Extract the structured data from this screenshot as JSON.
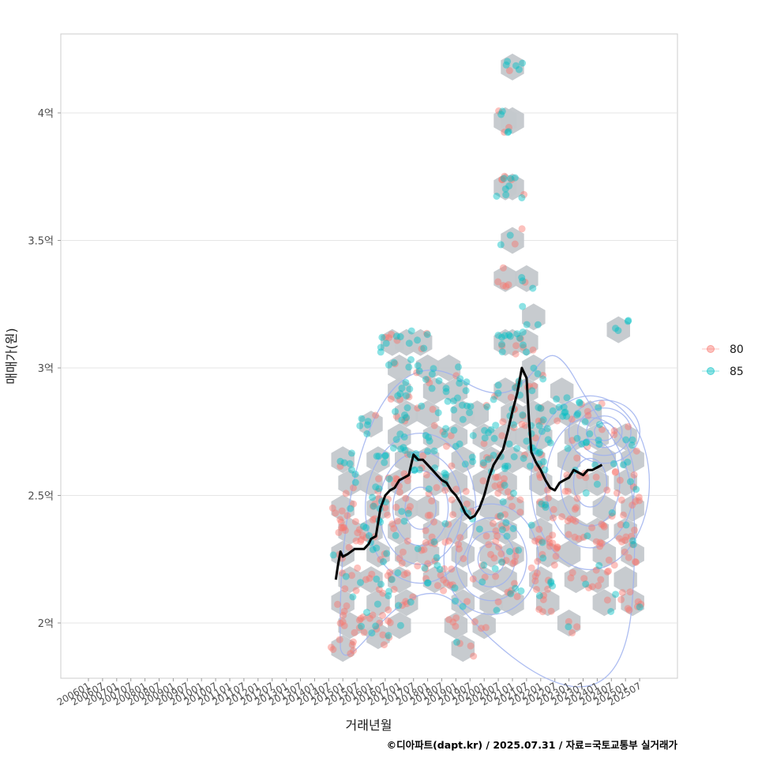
{
  "chart_data": {
    "type": "scatter",
    "xlabel": "거래년월",
    "ylabel": "매매가(원)",
    "caption": "©디아파트(dapt.kr) / 2025.07.31 / 자료=국토교통부 실거래가",
    "y_unit": "억원",
    "ylim": [
      1.8,
      4.31
    ],
    "y_ticks": [
      {
        "value": 2.0,
        "label": "2억"
      },
      {
        "value": 2.5,
        "label": "2.5억"
      },
      {
        "value": 3.0,
        "label": "3억"
      },
      {
        "value": 3.5,
        "label": "3.5억"
      },
      {
        "value": 4.0,
        "label": "4억"
      }
    ],
    "x_ticks": [
      "200601",
      "200607",
      "200701",
      "200707",
      "200801",
      "200807",
      "200901",
      "200907",
      "201001",
      "201007",
      "201101",
      "201107",
      "201201",
      "201207",
      "201301",
      "201307",
      "201401",
      "201407",
      "201501",
      "201507",
      "201601",
      "201607",
      "201701",
      "201707",
      "201801",
      "201807",
      "201901",
      "201907",
      "202001",
      "202007",
      "202101",
      "202107",
      "202201",
      "202207",
      "202301",
      "202307",
      "202401",
      "202407",
      "202501",
      "202507"
    ],
    "legend": {
      "title": "",
      "position": "right",
      "entries": [
        {
          "label": "80",
          "color": "#F8766D"
        },
        {
          "label": "85",
          "color": "#00BFC4"
        }
      ]
    },
    "moving_average": {
      "color": "#000000",
      "points": [
        [
          201410,
          2.17
        ],
        [
          201411,
          2.23
        ],
        [
          201412,
          2.28
        ],
        [
          201501,
          2.26
        ],
        [
          201503,
          2.27
        ],
        [
          201506,
          2.29
        ],
        [
          201508,
          2.29
        ],
        [
          201510,
          2.29
        ],
        [
          201512,
          2.31
        ],
        [
          201601,
          2.33
        ],
        [
          201603,
          2.34
        ],
        [
          201605,
          2.45
        ],
        [
          201607,
          2.5
        ],
        [
          201609,
          2.52
        ],
        [
          201611,
          2.53
        ],
        [
          201701,
          2.56
        ],
        [
          201703,
          2.57
        ],
        [
          201705,
          2.58
        ],
        [
          201707,
          2.66
        ],
        [
          201709,
          2.64
        ],
        [
          201711,
          2.64
        ],
        [
          201801,
          2.62
        ],
        [
          201803,
          2.6
        ],
        [
          201805,
          2.58
        ],
        [
          201807,
          2.56
        ],
        [
          201809,
          2.55
        ],
        [
          201811,
          2.52
        ],
        [
          201901,
          2.5
        ],
        [
          201903,
          2.47
        ],
        [
          201905,
          2.43
        ],
        [
          201907,
          2.41
        ],
        [
          201909,
          2.42
        ],
        [
          201911,
          2.45
        ],
        [
          202001,
          2.5
        ],
        [
          202003,
          2.57
        ],
        [
          202005,
          2.62
        ],
        [
          202007,
          2.65
        ],
        [
          202009,
          2.68
        ],
        [
          202011,
          2.75
        ],
        [
          202101,
          2.83
        ],
        [
          202103,
          2.9
        ],
        [
          202105,
          3.0
        ],
        [
          202107,
          2.96
        ],
        [
          202108,
          2.8
        ],
        [
          202109,
          2.67
        ],
        [
          202111,
          2.63
        ],
        [
          202201,
          2.6
        ],
        [
          202203,
          2.56
        ],
        [
          202205,
          2.53
        ],
        [
          202207,
          2.52
        ],
        [
          202209,
          2.55
        ],
        [
          202211,
          2.56
        ],
        [
          202301,
          2.57
        ],
        [
          202303,
          2.6
        ],
        [
          202305,
          2.59
        ],
        [
          202307,
          2.58
        ],
        [
          202309,
          2.6
        ],
        [
          202311,
          2.6
        ],
        [
          202401,
          2.61
        ],
        [
          202403,
          2.62
        ]
      ]
    },
    "hex_centers": [
      [
        201501,
        2.64
      ],
      [
        201504,
        2.55
      ],
      [
        201501,
        2.45
      ],
      [
        201504,
        2.36
      ],
      [
        201501,
        2.27
      ],
      [
        201504,
        2.17
      ],
      [
        201501,
        2.08
      ],
      [
        201504,
        1.99
      ],
      [
        201501,
        1.9
      ],
      [
        201601,
        2.78
      ],
      [
        201604,
        2.64
      ],
      [
        201601,
        2.55
      ],
      [
        201604,
        2.45
      ],
      [
        201601,
        2.36
      ],
      [
        201604,
        2.27
      ],
      [
        201601,
        2.17
      ],
      [
        201604,
        2.08
      ],
      [
        201601,
        1.99
      ],
      [
        201604,
        1.95
      ],
      [
        201610,
        3.1
      ],
      [
        201701,
        3.0
      ],
      [
        201704,
        3.1
      ],
      [
        201701,
        2.91
      ],
      [
        201704,
        2.82
      ],
      [
        201701,
        2.73
      ],
      [
        201704,
        2.64
      ],
      [
        201701,
        2.55
      ],
      [
        201704,
        2.45
      ],
      [
        201701,
        2.36
      ],
      [
        201704,
        2.27
      ],
      [
        201701,
        2.17
      ],
      [
        201704,
        2.08
      ],
      [
        201701,
        1.99
      ],
      [
        201710,
        3.1
      ],
      [
        201801,
        3.0
      ],
      [
        201804,
        2.91
      ],
      [
        201801,
        2.82
      ],
      [
        201804,
        2.73
      ],
      [
        201801,
        2.64
      ],
      [
        201804,
        2.55
      ],
      [
        201801,
        2.45
      ],
      [
        201804,
        2.36
      ],
      [
        201801,
        2.27
      ],
      [
        201804,
        2.17
      ],
      [
        201810,
        3.0
      ],
      [
        201901,
        2.91
      ],
      [
        201904,
        2.82
      ],
      [
        201901,
        2.73
      ],
      [
        201904,
        2.64
      ],
      [
        201901,
        2.55
      ],
      [
        201904,
        2.45
      ],
      [
        201901,
        2.36
      ],
      [
        201904,
        2.27
      ],
      [
        201901,
        2.17
      ],
      [
        201904,
        2.08
      ],
      [
        201901,
        1.99
      ],
      [
        201904,
        1.9
      ],
      [
        201910,
        2.82
      ],
      [
        202001,
        2.73
      ],
      [
        202004,
        2.64
      ],
      [
        202001,
        2.55
      ],
      [
        202004,
        2.45
      ],
      [
        202001,
        2.36
      ],
      [
        202004,
        2.27
      ],
      [
        202001,
        2.17
      ],
      [
        202004,
        2.08
      ],
      [
        202001,
        1.99
      ],
      [
        202010,
        3.97
      ],
      [
        202101,
        3.97
      ],
      [
        202010,
        3.71
      ],
      [
        202101,
        3.71
      ],
      [
        202101,
        4.18
      ],
      [
        202010,
        3.35
      ],
      [
        202101,
        3.5
      ],
      [
        202010,
        3.1
      ],
      [
        202101,
        3.1
      ],
      [
        202010,
        2.91
      ],
      [
        202101,
        2.82
      ],
      [
        202010,
        2.73
      ],
      [
        202101,
        2.64
      ],
      [
        202010,
        2.55
      ],
      [
        202101,
        2.45
      ],
      [
        202010,
        2.36
      ],
      [
        202101,
        2.27
      ],
      [
        202010,
        2.17
      ],
      [
        202101,
        2.08
      ],
      [
        202107,
        3.35
      ],
      [
        202110,
        3.2
      ],
      [
        202107,
        3.1
      ],
      [
        202110,
        3.0
      ],
      [
        202107,
        2.91
      ],
      [
        202110,
        2.82
      ],
      [
        202107,
        2.73
      ],
      [
        202110,
        2.64
      ],
      [
        202201,
        2.73
      ],
      [
        202204,
        2.82
      ],
      [
        202201,
        2.55
      ],
      [
        202204,
        2.45
      ],
      [
        202201,
        2.36
      ],
      [
        202204,
        2.27
      ],
      [
        202201,
        2.17
      ],
      [
        202204,
        2.08
      ],
      [
        202210,
        2.91
      ],
      [
        202301,
        2.82
      ],
      [
        202304,
        2.73
      ],
      [
        202301,
        2.64
      ],
      [
        202304,
        2.55
      ],
      [
        202301,
        2.45
      ],
      [
        202304,
        2.36
      ],
      [
        202301,
        2.27
      ],
      [
        202304,
        2.17
      ],
      [
        202301,
        2.0
      ],
      [
        202310,
        2.82
      ],
      [
        202401,
        2.73
      ],
      [
        202404,
        2.64
      ],
      [
        202401,
        2.55
      ],
      [
        202404,
        2.45
      ],
      [
        202401,
        2.36
      ],
      [
        202404,
        2.27
      ],
      [
        202401,
        2.17
      ],
      [
        202404,
        2.08
      ],
      [
        202410,
        3.15
      ],
      [
        202501,
        2.73
      ],
      [
        202504,
        2.64
      ],
      [
        202501,
        2.55
      ],
      [
        202504,
        2.45
      ],
      [
        202501,
        2.36
      ],
      [
        202504,
        2.27
      ],
      [
        202501,
        2.17
      ],
      [
        202504,
        2.08
      ]
    ],
    "scatter_seed": 42,
    "scatter_counts": {
      "80": 420,
      "85": 330
    }
  }
}
